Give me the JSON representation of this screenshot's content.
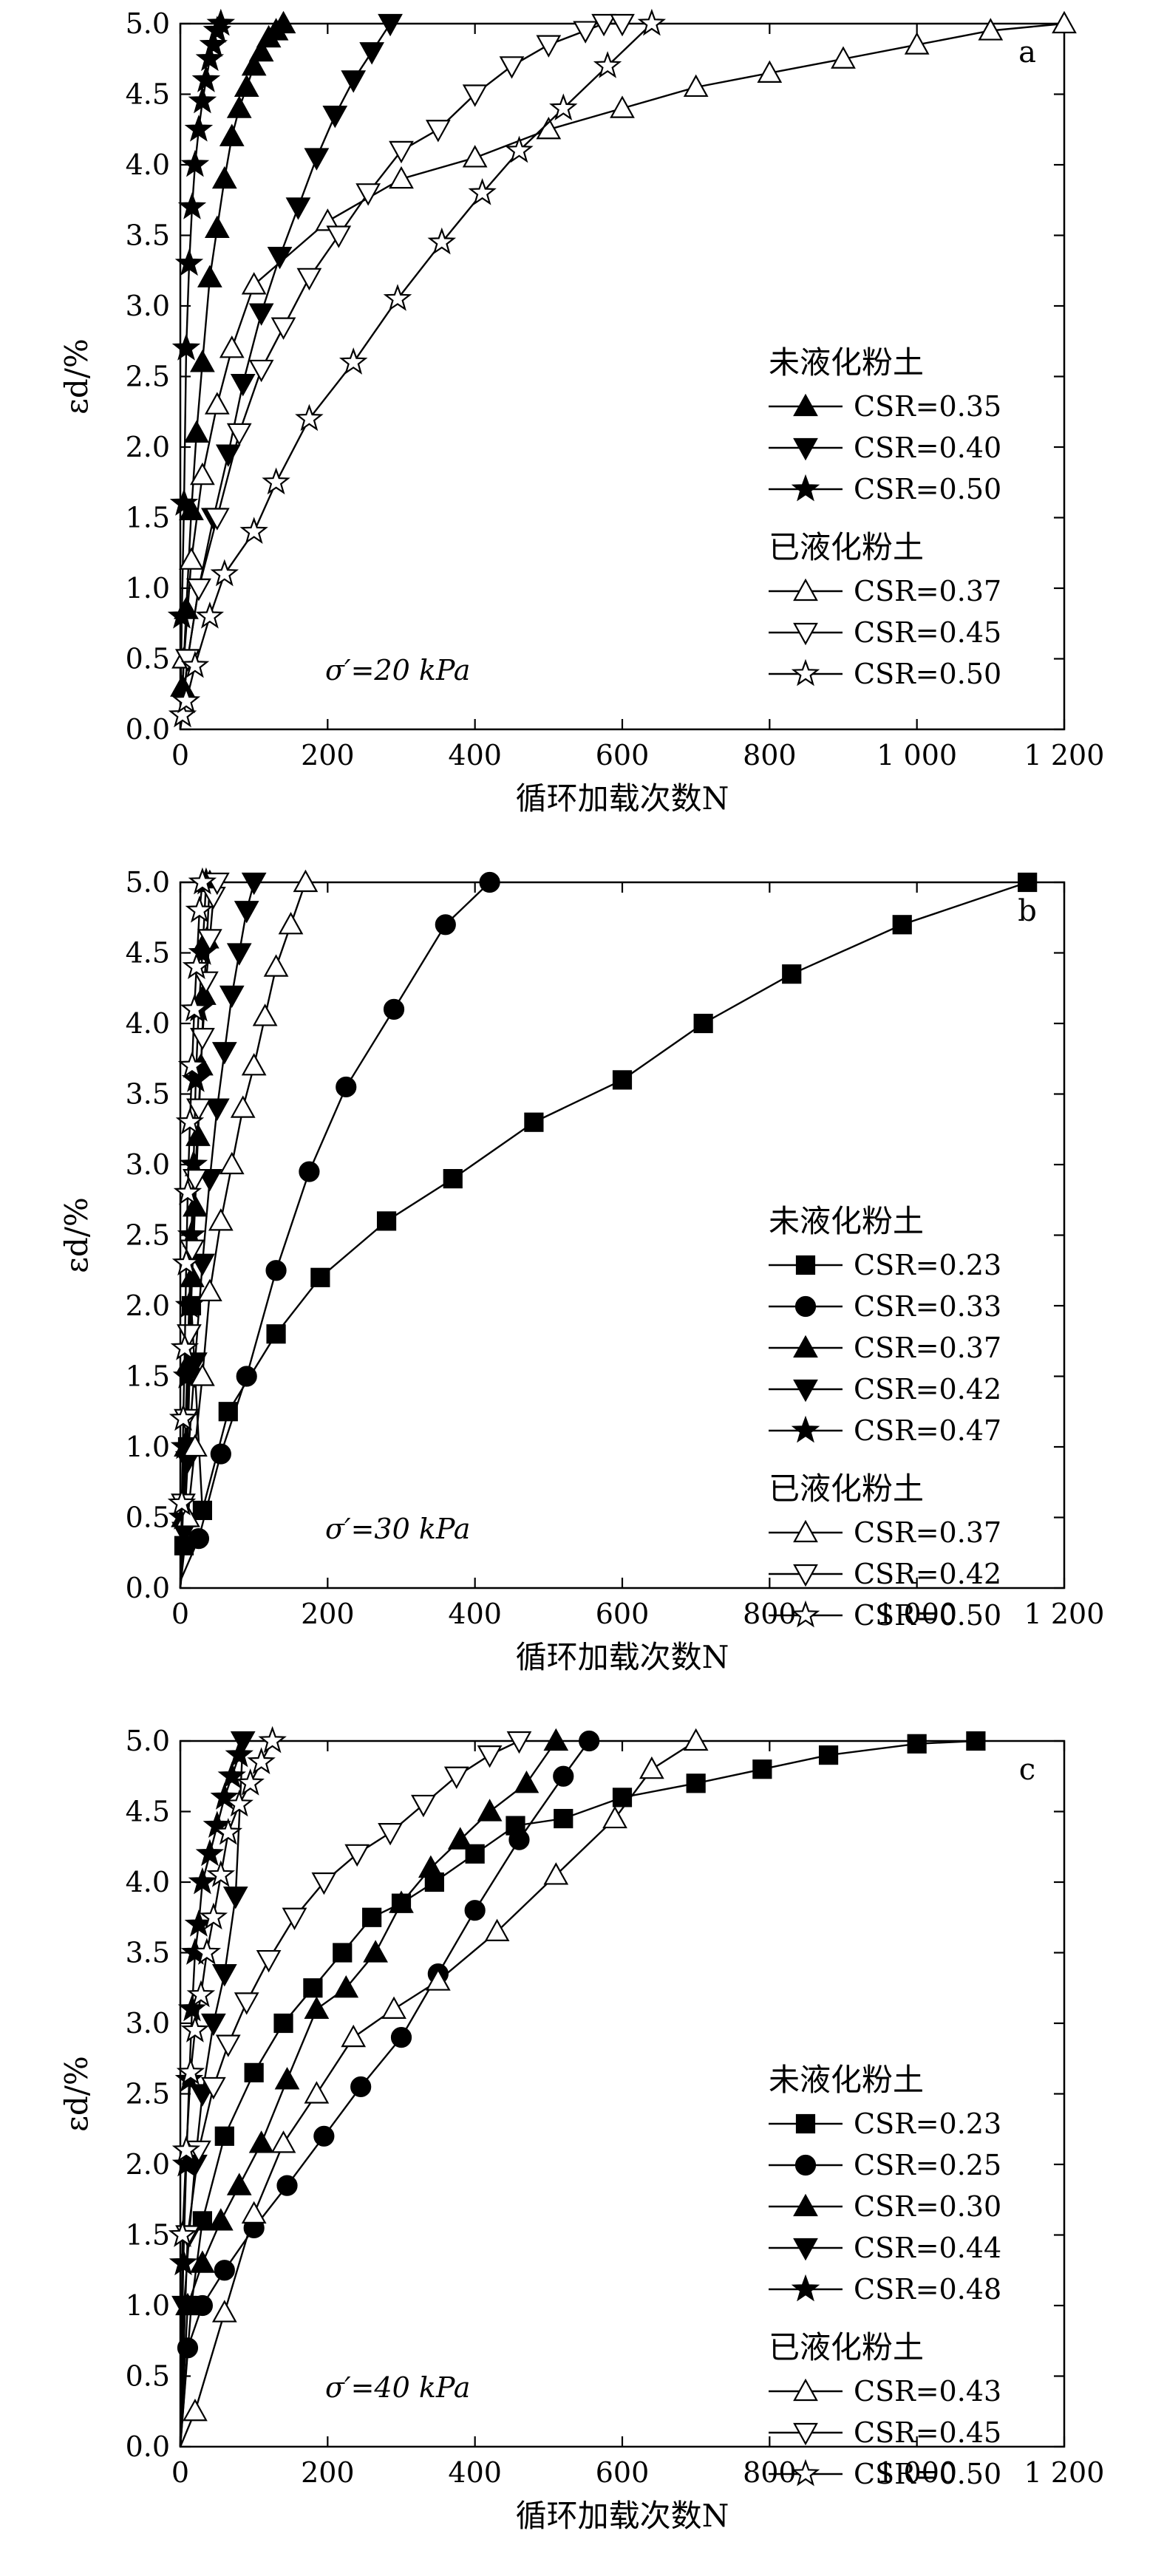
{
  "chart_data": [
    {
      "type": "line",
      "panel_label": "a",
      "annotation": "σ′=20 kPa",
      "xlabel": "循环加载次数N",
      "ylabel": "εd/%",
      "xlim": [
        0,
        1200
      ],
      "ylim": [
        0,
        5.0
      ],
      "xticks": [
        "0",
        "200",
        "400",
        "600",
        "800",
        "1 000",
        "1 200"
      ],
      "yticks": [
        "0.0",
        "0.5",
        "1.0",
        "1.5",
        "2.0",
        "2.5",
        "3.0",
        "3.5",
        "4.0",
        "4.5",
        "5.0"
      ],
      "legend_placement": "right",
      "legend_groups": [
        "未液化粉土",
        "已液化粉土"
      ],
      "series": [
        {
          "name": "CSR=0.35",
          "group": 0,
          "marker": "triangle-up",
          "filled": true,
          "x": [
            0,
            3,
            8,
            15,
            22,
            30,
            40,
            50,
            60,
            70,
            80,
            90,
            100,
            110,
            120,
            130,
            140
          ],
          "y": [
            0.0,
            0.3,
            0.85,
            1.55,
            2.1,
            2.6,
            3.2,
            3.55,
            3.9,
            4.2,
            4.4,
            4.55,
            4.7,
            4.8,
            4.9,
            4.95,
            5.0
          ]
        },
        {
          "name": "CSR=0.40",
          "group": 0,
          "marker": "triangle-down",
          "filled": true,
          "x": [
            0,
            10,
            25,
            45,
            65,
            85,
            110,
            135,
            160,
            185,
            210,
            235,
            260,
            285
          ],
          "y": [
            0.0,
            0.5,
            1.0,
            1.5,
            1.95,
            2.45,
            2.95,
            3.35,
            3.7,
            4.05,
            4.35,
            4.6,
            4.8,
            5.0
          ]
        },
        {
          "name": "CSR=0.50",
          "group": 0,
          "marker": "star",
          "filled": true,
          "x": [
            0,
            2,
            5,
            8,
            12,
            16,
            20,
            25,
            30,
            35,
            40,
            45,
            50,
            55
          ],
          "y": [
            0.0,
            0.8,
            1.6,
            2.7,
            3.3,
            3.7,
            4.0,
            4.25,
            4.45,
            4.6,
            4.75,
            4.85,
            4.95,
            5.0
          ]
        },
        {
          "name": "CSR=0.37",
          "group": 1,
          "marker": "triangle-up",
          "filled": false,
          "x": [
            0,
            5,
            15,
            30,
            50,
            70,
            100,
            200,
            300,
            400,
            500,
            600,
            700,
            800,
            900,
            1000,
            1100,
            1200
          ],
          "y": [
            0.0,
            0.5,
            1.2,
            1.8,
            2.3,
            2.7,
            3.15,
            3.6,
            3.9,
            4.05,
            4.25,
            4.4,
            4.55,
            4.65,
            4.75,
            4.85,
            4.95,
            5.0
          ]
        },
        {
          "name": "CSR=0.45",
          "group": 1,
          "marker": "triangle-down",
          "filled": false,
          "x": [
            0,
            10,
            25,
            50,
            80,
            110,
            140,
            175,
            215,
            255,
            300,
            350,
            400,
            450,
            500,
            550,
            575,
            600
          ],
          "y": [
            0.0,
            0.5,
            1.0,
            1.5,
            2.1,
            2.55,
            2.85,
            3.2,
            3.5,
            3.8,
            4.1,
            4.25,
            4.5,
            4.7,
            4.85,
            4.95,
            5.0,
            5.0
          ]
        },
        {
          "name": "CSR=0.50",
          "group": 1,
          "marker": "star",
          "filled": false,
          "x": [
            0,
            3,
            8,
            20,
            40,
            60,
            100,
            130,
            175,
            235,
            295,
            355,
            410,
            460,
            520,
            580,
            640
          ],
          "y": [
            0.0,
            0.1,
            0.2,
            0.45,
            0.8,
            1.1,
            1.4,
            1.75,
            2.2,
            2.6,
            3.05,
            3.45,
            3.8,
            4.1,
            4.4,
            4.7,
            5.0
          ]
        }
      ]
    },
    {
      "type": "line",
      "panel_label": "b",
      "annotation": "σ′=30 kPa",
      "xlabel": "循环加载次数N",
      "ylabel": "εd/%",
      "xlim": [
        0,
        1200
      ],
      "ylim": [
        0,
        5.0
      ],
      "xticks": [
        "0",
        "200",
        "400",
        "600",
        "800",
        "1 000",
        "1 200"
      ],
      "yticks": [
        "0.0",
        "0.5",
        "1.0",
        "1.5",
        "2.0",
        "2.5",
        "3.0",
        "3.5",
        "4.0",
        "4.5",
        "5.0"
      ],
      "legend_placement": "right",
      "legend_groups": [
        "未液化粉土",
        "已液化粉土"
      ],
      "series": [
        {
          "name": "CSR=0.23",
          "group": 0,
          "marker": "square",
          "filled": true,
          "x": [
            0,
            5,
            10,
            15,
            30,
            65,
            130,
            190,
            280,
            370,
            480,
            600,
            710,
            830,
            980,
            1150
          ],
          "y": [
            0.0,
            0.3,
            1.0,
            2.0,
            0.55,
            1.25,
            1.8,
            2.2,
            2.6,
            2.9,
            3.3,
            3.6,
            4.0,
            4.35,
            4.7,
            5.0
          ]
        },
        {
          "name": "CSR=0.33",
          "group": 0,
          "marker": "circle",
          "filled": true,
          "x": [
            0,
            25,
            55,
            90,
            130,
            175,
            225,
            290,
            360,
            420
          ],
          "y": [
            0.05,
            0.35,
            0.95,
            1.5,
            2.25,
            2.95,
            3.55,
            4.1,
            4.7,
            5.0
          ]
        },
        {
          "name": "CSR=0.37",
          "group": 0,
          "marker": "triangle-up",
          "filled": true,
          "x": [
            0,
            4,
            8,
            12,
            16,
            20,
            24,
            28,
            32,
            36,
            40
          ],
          "y": [
            0.0,
            0.5,
            1.0,
            1.6,
            2.2,
            2.7,
            3.2,
            3.7,
            4.2,
            4.6,
            5.0
          ]
        },
        {
          "name": "CSR=0.42",
          "group": 0,
          "marker": "triangle-down",
          "filled": true,
          "x": [
            0,
            5,
            10,
            20,
            30,
            40,
            50,
            60,
            70,
            80,
            90,
            100
          ],
          "y": [
            0.0,
            0.4,
            0.9,
            1.6,
            2.3,
            2.9,
            3.4,
            3.8,
            4.2,
            4.5,
            4.8,
            5.0
          ]
        },
        {
          "name": "CSR=0.47",
          "group": 0,
          "marker": "star",
          "filled": true,
          "x": [
            0,
            3,
            6,
            9,
            12,
            15,
            18,
            21,
            25,
            30,
            35
          ],
          "y": [
            0.0,
            0.5,
            1.0,
            1.5,
            2.0,
            2.5,
            3.0,
            3.6,
            4.1,
            4.5,
            5.0
          ]
        },
        {
          "name": "CSR=0.37",
          "group": 1,
          "marker": "triangle-up",
          "filled": false,
          "x": [
            0,
            10,
            20,
            30,
            40,
            55,
            70,
            85,
            100,
            115,
            130,
            150,
            170
          ],
          "y": [
            0.0,
            0.5,
            1.0,
            1.5,
            2.1,
            2.6,
            3.0,
            3.4,
            3.7,
            4.05,
            4.4,
            4.7,
            5.0
          ]
        },
        {
          "name": "CSR=0.42",
          "group": 1,
          "marker": "triangle-down",
          "filled": false,
          "x": [
            0,
            4,
            8,
            12,
            16,
            20,
            25,
            30,
            35,
            40,
            45,
            50
          ],
          "y": [
            0.0,
            0.6,
            1.2,
            1.8,
            2.4,
            2.9,
            3.4,
            3.9,
            4.3,
            4.6,
            4.9,
            5.0
          ]
        },
        {
          "name": "CSR=0.50",
          "group": 1,
          "marker": "star",
          "filled": false,
          "x": [
            0,
            2,
            4,
            6,
            8,
            10,
            13,
            16,
            19,
            22,
            26,
            30
          ],
          "y": [
            0.0,
            0.6,
            1.2,
            1.7,
            2.3,
            2.8,
            3.3,
            3.7,
            4.1,
            4.4,
            4.8,
            5.0
          ]
        }
      ]
    },
    {
      "type": "line",
      "panel_label": "c",
      "annotation": "σ′=40 kPa",
      "xlabel": "循环加载次数N",
      "ylabel": "εd/%",
      "xlim": [
        0,
        1200
      ],
      "ylim": [
        0,
        5.0
      ],
      "xticks": [
        "0",
        "200",
        "400",
        "600",
        "800",
        "1 000",
        "1 200"
      ],
      "yticks": [
        "0.0",
        "0.5",
        "1.0",
        "1.5",
        "2.0",
        "2.5",
        "3.0",
        "3.5",
        "4.0",
        "4.5",
        "5.0"
      ],
      "legend_placement": "right",
      "legend_groups": [
        "未液化粉土",
        "已液化粉土"
      ],
      "series": [
        {
          "name": "CSR=0.23",
          "group": 0,
          "marker": "square",
          "filled": true,
          "x": [
            0,
            15,
            30,
            60,
            100,
            140,
            180,
            220,
            260,
            300,
            345,
            400,
            455,
            520,
            600,
            700,
            790,
            880,
            1000,
            1080
          ],
          "y": [
            0.0,
            1.0,
            1.6,
            2.2,
            2.65,
            3.0,
            3.25,
            3.5,
            3.75,
            3.85,
            4.0,
            4.2,
            4.4,
            4.45,
            4.6,
            4.7,
            4.8,
            4.9,
            4.98,
            5.0
          ]
        },
        {
          "name": "CSR=0.25",
          "group": 0,
          "marker": "circle",
          "filled": true,
          "x": [
            0,
            10,
            30,
            60,
            100,
            145,
            195,
            245,
            300,
            350,
            400,
            460,
            520,
            555
          ],
          "y": [
            0.0,
            0.7,
            1.0,
            1.25,
            1.55,
            1.85,
            2.2,
            2.55,
            2.9,
            3.35,
            3.8,
            4.3,
            4.75,
            5.0
          ]
        },
        {
          "name": "CSR=0.30",
          "group": 0,
          "marker": "triangle-up",
          "filled": true,
          "x": [
            0,
            10,
            30,
            55,
            80,
            110,
            145,
            185,
            225,
            265,
            300,
            340,
            380,
            420,
            470,
            510
          ],
          "y": [
            0.0,
            1.0,
            1.3,
            1.6,
            1.85,
            2.15,
            2.6,
            3.1,
            3.25,
            3.5,
            3.85,
            4.1,
            4.3,
            4.5,
            4.7,
            5.0
          ]
        },
        {
          "name": "CSR=0.44",
          "group": 0,
          "marker": "triangle-down",
          "filled": true,
          "x": [
            0,
            5,
            12,
            20,
            30,
            45,
            60,
            75,
            85
          ],
          "y": [
            0.0,
            1.0,
            1.5,
            2.0,
            2.5,
            3.0,
            3.35,
            3.9,
            5.0
          ]
        },
        {
          "name": "CSR=0.48",
          "group": 0,
          "marker": "star",
          "filled": true,
          "x": [
            0,
            4,
            8,
            12,
            16,
            20,
            25,
            30,
            40,
            50,
            60,
            70,
            80
          ],
          "y": [
            0.0,
            1.3,
            2.0,
            2.6,
            3.1,
            3.5,
            3.7,
            4.0,
            4.2,
            4.4,
            4.6,
            4.75,
            4.9
          ]
        },
        {
          "name": "CSR=0.43",
          "group": 1,
          "marker": "triangle-up",
          "filled": false,
          "x": [
            0,
            20,
            60,
            100,
            140,
            185,
            235,
            290,
            350,
            430,
            510,
            590,
            640,
            700
          ],
          "y": [
            0.0,
            0.25,
            0.95,
            1.65,
            2.15,
            2.5,
            2.9,
            3.1,
            3.3,
            3.65,
            4.05,
            4.45,
            4.8,
            5.0
          ]
        },
        {
          "name": "CSR=0.45",
          "group": 1,
          "marker": "triangle-down",
          "filled": false,
          "x": [
            0,
            10,
            25,
            45,
            65,
            90,
            120,
            155,
            195,
            240,
            285,
            330,
            375,
            420,
            460
          ],
          "y": [
            0.0,
            1.5,
            2.1,
            2.55,
            2.85,
            3.15,
            3.45,
            3.75,
            4.0,
            4.2,
            4.35,
            4.55,
            4.75,
            4.9,
            5.0
          ]
        },
        {
          "name": "CSR=0.50",
          "group": 1,
          "marker": "star",
          "filled": false,
          "x": [
            0,
            3,
            8,
            14,
            20,
            28,
            36,
            45,
            55,
            65,
            80,
            95,
            110,
            125
          ],
          "y": [
            0.0,
            1.5,
            2.1,
            2.65,
            2.95,
            3.2,
            3.5,
            3.75,
            4.05,
            4.35,
            4.55,
            4.7,
            4.85,
            5.0
          ]
        }
      ]
    }
  ]
}
